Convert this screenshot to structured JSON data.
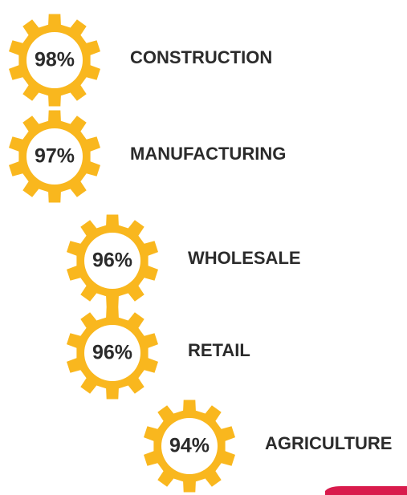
{
  "chart_data": {
    "type": "gear",
    "categories": [
      "CONSTRUCTION",
      "MANUFACTURING",
      "WHOLESALE",
      "RETAIL",
      "AGRICULTURE"
    ],
    "values": [
      98,
      97,
      96,
      96,
      94
    ],
    "value_labels": [
      "98%",
      "97%",
      "96%",
      "96%",
      "94%"
    ],
    "color": "#f9b71e"
  }
}
